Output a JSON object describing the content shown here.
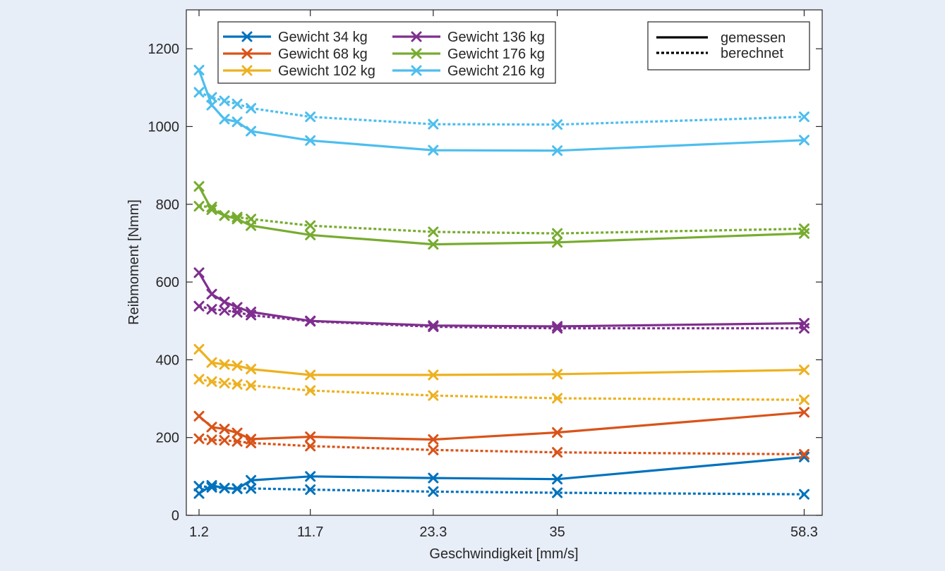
{
  "chart_data": {
    "type": "line",
    "title": "",
    "xlabel": "Geschwindigkeit [mm/s]",
    "ylabel": "Reibmoment [Nmm]",
    "xlim": [
      0,
      60
    ],
    "ylim": [
      0,
      1300
    ],
    "x_ticks": [
      1.2,
      11.7,
      23.3,
      35,
      58.3
    ],
    "x_tick_labels": [
      "1.2",
      "11.7",
      "23.3",
      "35",
      "58.3"
    ],
    "y_ticks": [
      0,
      200,
      400,
      600,
      800,
      1000,
      1200
    ],
    "grid": false,
    "x": [
      1.2,
      2.4,
      3.6,
      4.8,
      6.1,
      11.7,
      23.3,
      35,
      58.3
    ],
    "series": [
      {
        "name": "Gewicht 34 kg",
        "color": "#0072bd",
        "measured": [
          56,
          77,
          70,
          68,
          90,
          100,
          96,
          93,
          150
        ],
        "calculated": [
          75,
          72,
          70,
          69,
          69,
          66,
          61,
          58,
          54
        ]
      },
      {
        "name": "Gewicht 68 kg",
        "color": "#d95319",
        "measured": [
          255,
          227,
          222,
          212,
          196,
          202,
          195,
          213,
          265
        ],
        "calculated": [
          197,
          194,
          193,
          190,
          186,
          178,
          168,
          162,
          157
        ]
      },
      {
        "name": "Gewicht 102 kg",
        "color": "#edb120",
        "measured": [
          427,
          393,
          388,
          385,
          376,
          361,
          361,
          363,
          374
        ],
        "calculated": [
          350,
          344,
          340,
          337,
          334,
          321,
          308,
          301,
          297
        ]
      },
      {
        "name": "Gewicht 136 kg",
        "color": "#7e2f8e",
        "measured": [
          624,
          569,
          549,
          535,
          523,
          500,
          488,
          486,
          494
        ],
        "calculated": [
          538,
          530,
          527,
          522,
          515,
          499,
          485,
          481,
          481
        ]
      },
      {
        "name": "Gewicht 176 kg",
        "color": "#77ac30",
        "measured": [
          846,
          786,
          771,
          762,
          745,
          721,
          697,
          702,
          725
        ],
        "calculated": [
          795,
          793,
          771,
          767,
          762,
          745,
          729,
          725,
          737
        ]
      },
      {
        "name": "Gewicht 216 kg",
        "color": "#4dbeee",
        "measured": [
          1145,
          1055,
          1019,
          1012,
          988,
          964,
          939,
          938,
          965
        ],
        "calculated": [
          1088,
          1075,
          1066,
          1058,
          1047,
          1025,
          1006,
          1005,
          1025
        ]
      }
    ],
    "style_legend": [
      {
        "label": "gemessen",
        "style": "solid"
      },
      {
        "label": "berechnet",
        "style": "dotted"
      }
    ],
    "legend_position": "top-left",
    "style_legend_position": "top-right"
  }
}
